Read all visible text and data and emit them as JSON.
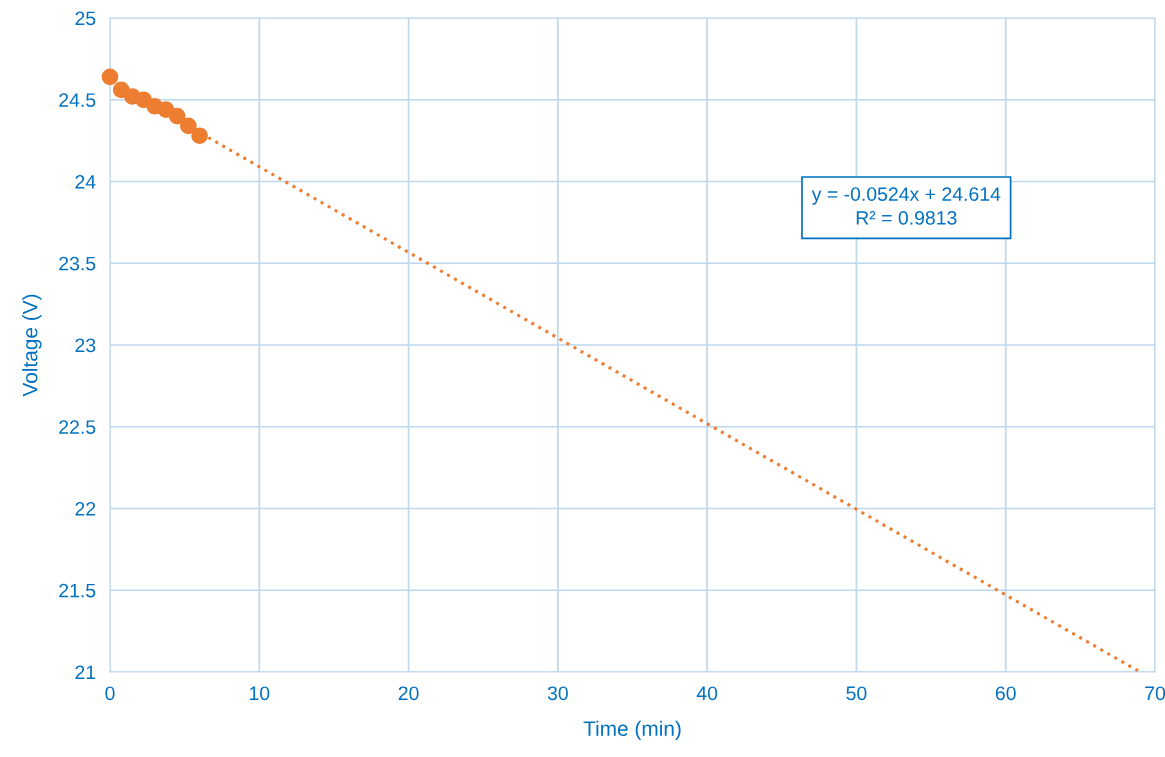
{
  "chart_data": {
    "type": "scatter",
    "xlabel": "Time (min)",
    "ylabel": "Voltage (V)",
    "xlim": [
      0,
      70
    ],
    "xticks": [
      0,
      10,
      20,
      30,
      40,
      50,
      60,
      70
    ],
    "ylim": [
      21,
      25
    ],
    "yticks": [
      21,
      21.5,
      22,
      22.5,
      23,
      23.5,
      24,
      24.5,
      25
    ],
    "grid": true,
    "series": [
      {
        "color": "#ed7d31",
        "marker": "circle",
        "x": [
          0,
          0.75,
          1.5,
          2.25,
          3,
          3.75,
          4.5,
          5.25,
          6
        ],
        "values": [
          24.64,
          24.56,
          24.52,
          24.5,
          24.46,
          24.44,
          24.4,
          24.34,
          24.28
        ]
      },
      {
        "type": "line",
        "color": "#ed7d31",
        "line_style": "dotted",
        "marker": "none",
        "x": [
          0,
          69
        ],
        "values": [
          24.614,
          21.0
        ]
      }
    ],
    "annotations": [
      "y = -0.0524x + 24.614\nR² = 0.9813"
    ]
  }
}
